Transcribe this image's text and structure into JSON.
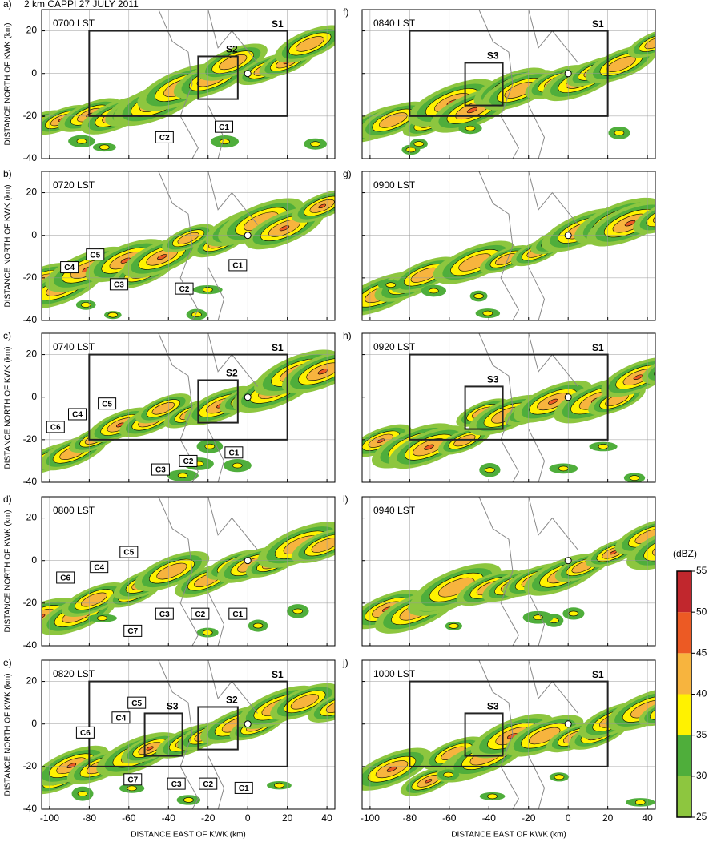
{
  "chart_data": {
    "type": "radar-panels",
    "title": "2 km CAPPI 27 JULY 2011",
    "x_label": "DISTANCE EAST OF KWK (km)",
    "y_label": "DISTANCE NORTH OF KWK (km)",
    "xlim": [
      -104,
      44
    ],
    "ylim": [
      -40,
      30
    ],
    "xticks": [
      -100,
      -80,
      -60,
      -40,
      -20,
      0,
      20,
      40
    ],
    "yticks": [
      -40,
      -20,
      0,
      20
    ],
    "grid": true,
    "panels": [
      {
        "label": "a)",
        "time": "0700 LST",
        "storms": [
          "C1",
          "C2"
        ],
        "boxes": [
          "S1",
          "S2"
        ]
      },
      {
        "label": "b)",
        "time": "0720 LST",
        "storms": [
          "C4",
          "C5",
          "C3",
          "C2",
          "C1"
        ],
        "boxes": []
      },
      {
        "label": "c)",
        "time": "0740 LST",
        "storms": [
          "C6",
          "C4",
          "C5",
          "C3",
          "C2",
          "C1"
        ],
        "boxes": [
          "S1",
          "S2"
        ]
      },
      {
        "label": "d)",
        "time": "0800 LST",
        "storms": [
          "C6",
          "C4",
          "C5",
          "C7",
          "C3",
          "C2",
          "C1"
        ],
        "boxes": []
      },
      {
        "label": "e)",
        "time": "0820 LST",
        "storms": [
          "C6",
          "C4",
          "C5",
          "C7",
          "C3",
          "C2",
          "C1"
        ],
        "boxes": [
          "S1",
          "S2",
          "S3"
        ]
      },
      {
        "label": "f)",
        "time": "0840 LST",
        "storms": [],
        "boxes": [
          "S1",
          "S3"
        ]
      },
      {
        "label": "g)",
        "time": "0900 LST",
        "storms": [],
        "boxes": []
      },
      {
        "label": "h)",
        "time": "0920 LST",
        "storms": [],
        "boxes": [
          "S1",
          "S3"
        ]
      },
      {
        "label": "i)",
        "time": "0940 LST",
        "storms": [],
        "boxes": []
      },
      {
        "label": "j)",
        "time": "1000 LST",
        "storms": [],
        "boxes": [
          "S1",
          "S3"
        ]
      }
    ],
    "colorbar": {
      "label": "(dBZ)",
      "levels": [
        25,
        30,
        35,
        40,
        45,
        50,
        55
      ],
      "colors": [
        "#8dc63f",
        "#4fae3b",
        "#fff200",
        "#f7b43e",
        "#ec5a24",
        "#c1272d"
      ]
    }
  }
}
